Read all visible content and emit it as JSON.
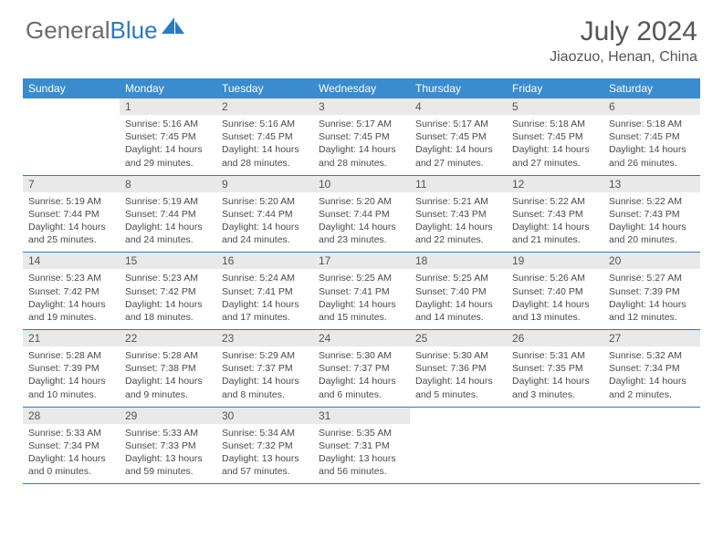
{
  "logo": {
    "text1": "General",
    "text2": "Blue"
  },
  "title": "July 2024",
  "location": "Jiaozuo, Henan, China",
  "colors": {
    "header_bg": "#3a8ccf",
    "accent": "#2a7ac0",
    "daynum_bg": "#e9e9e9",
    "text": "#4a4a4a"
  },
  "day_names": [
    "Sunday",
    "Monday",
    "Tuesday",
    "Wednesday",
    "Thursday",
    "Friday",
    "Saturday"
  ],
  "weeks": [
    [
      {
        "n": "",
        "sr": "",
        "ss": "",
        "dl": ""
      },
      {
        "n": "1",
        "sr": "Sunrise: 5:16 AM",
        "ss": "Sunset: 7:45 PM",
        "dl": "Daylight: 14 hours and 29 minutes."
      },
      {
        "n": "2",
        "sr": "Sunrise: 5:16 AM",
        "ss": "Sunset: 7:45 PM",
        "dl": "Daylight: 14 hours and 28 minutes."
      },
      {
        "n": "3",
        "sr": "Sunrise: 5:17 AM",
        "ss": "Sunset: 7:45 PM",
        "dl": "Daylight: 14 hours and 28 minutes."
      },
      {
        "n": "4",
        "sr": "Sunrise: 5:17 AM",
        "ss": "Sunset: 7:45 PM",
        "dl": "Daylight: 14 hours and 27 minutes."
      },
      {
        "n": "5",
        "sr": "Sunrise: 5:18 AM",
        "ss": "Sunset: 7:45 PM",
        "dl": "Daylight: 14 hours and 27 minutes."
      },
      {
        "n": "6",
        "sr": "Sunrise: 5:18 AM",
        "ss": "Sunset: 7:45 PM",
        "dl": "Daylight: 14 hours and 26 minutes."
      }
    ],
    [
      {
        "n": "7",
        "sr": "Sunrise: 5:19 AM",
        "ss": "Sunset: 7:44 PM",
        "dl": "Daylight: 14 hours and 25 minutes."
      },
      {
        "n": "8",
        "sr": "Sunrise: 5:19 AM",
        "ss": "Sunset: 7:44 PM",
        "dl": "Daylight: 14 hours and 24 minutes."
      },
      {
        "n": "9",
        "sr": "Sunrise: 5:20 AM",
        "ss": "Sunset: 7:44 PM",
        "dl": "Daylight: 14 hours and 24 minutes."
      },
      {
        "n": "10",
        "sr": "Sunrise: 5:20 AM",
        "ss": "Sunset: 7:44 PM",
        "dl": "Daylight: 14 hours and 23 minutes."
      },
      {
        "n": "11",
        "sr": "Sunrise: 5:21 AM",
        "ss": "Sunset: 7:43 PM",
        "dl": "Daylight: 14 hours and 22 minutes."
      },
      {
        "n": "12",
        "sr": "Sunrise: 5:22 AM",
        "ss": "Sunset: 7:43 PM",
        "dl": "Daylight: 14 hours and 21 minutes."
      },
      {
        "n": "13",
        "sr": "Sunrise: 5:22 AM",
        "ss": "Sunset: 7:43 PM",
        "dl": "Daylight: 14 hours and 20 minutes."
      }
    ],
    [
      {
        "n": "14",
        "sr": "Sunrise: 5:23 AM",
        "ss": "Sunset: 7:42 PM",
        "dl": "Daylight: 14 hours and 19 minutes."
      },
      {
        "n": "15",
        "sr": "Sunrise: 5:23 AM",
        "ss": "Sunset: 7:42 PM",
        "dl": "Daylight: 14 hours and 18 minutes."
      },
      {
        "n": "16",
        "sr": "Sunrise: 5:24 AM",
        "ss": "Sunset: 7:41 PM",
        "dl": "Daylight: 14 hours and 17 minutes."
      },
      {
        "n": "17",
        "sr": "Sunrise: 5:25 AM",
        "ss": "Sunset: 7:41 PM",
        "dl": "Daylight: 14 hours and 15 minutes."
      },
      {
        "n": "18",
        "sr": "Sunrise: 5:25 AM",
        "ss": "Sunset: 7:40 PM",
        "dl": "Daylight: 14 hours and 14 minutes."
      },
      {
        "n": "19",
        "sr": "Sunrise: 5:26 AM",
        "ss": "Sunset: 7:40 PM",
        "dl": "Daylight: 14 hours and 13 minutes."
      },
      {
        "n": "20",
        "sr": "Sunrise: 5:27 AM",
        "ss": "Sunset: 7:39 PM",
        "dl": "Daylight: 14 hours and 12 minutes."
      }
    ],
    [
      {
        "n": "21",
        "sr": "Sunrise: 5:28 AM",
        "ss": "Sunset: 7:39 PM",
        "dl": "Daylight: 14 hours and 10 minutes."
      },
      {
        "n": "22",
        "sr": "Sunrise: 5:28 AM",
        "ss": "Sunset: 7:38 PM",
        "dl": "Daylight: 14 hours and 9 minutes."
      },
      {
        "n": "23",
        "sr": "Sunrise: 5:29 AM",
        "ss": "Sunset: 7:37 PM",
        "dl": "Daylight: 14 hours and 8 minutes."
      },
      {
        "n": "24",
        "sr": "Sunrise: 5:30 AM",
        "ss": "Sunset: 7:37 PM",
        "dl": "Daylight: 14 hours and 6 minutes."
      },
      {
        "n": "25",
        "sr": "Sunrise: 5:30 AM",
        "ss": "Sunset: 7:36 PM",
        "dl": "Daylight: 14 hours and 5 minutes."
      },
      {
        "n": "26",
        "sr": "Sunrise: 5:31 AM",
        "ss": "Sunset: 7:35 PM",
        "dl": "Daylight: 14 hours and 3 minutes."
      },
      {
        "n": "27",
        "sr": "Sunrise: 5:32 AM",
        "ss": "Sunset: 7:34 PM",
        "dl": "Daylight: 14 hours and 2 minutes."
      }
    ],
    [
      {
        "n": "28",
        "sr": "Sunrise: 5:33 AM",
        "ss": "Sunset: 7:34 PM",
        "dl": "Daylight: 14 hours and 0 minutes."
      },
      {
        "n": "29",
        "sr": "Sunrise: 5:33 AM",
        "ss": "Sunset: 7:33 PM",
        "dl": "Daylight: 13 hours and 59 minutes."
      },
      {
        "n": "30",
        "sr": "Sunrise: 5:34 AM",
        "ss": "Sunset: 7:32 PM",
        "dl": "Daylight: 13 hours and 57 minutes."
      },
      {
        "n": "31",
        "sr": "Sunrise: 5:35 AM",
        "ss": "Sunset: 7:31 PM",
        "dl": "Daylight: 13 hours and 56 minutes."
      },
      {
        "n": "",
        "sr": "",
        "ss": "",
        "dl": ""
      },
      {
        "n": "",
        "sr": "",
        "ss": "",
        "dl": ""
      },
      {
        "n": "",
        "sr": "",
        "ss": "",
        "dl": ""
      }
    ]
  ]
}
